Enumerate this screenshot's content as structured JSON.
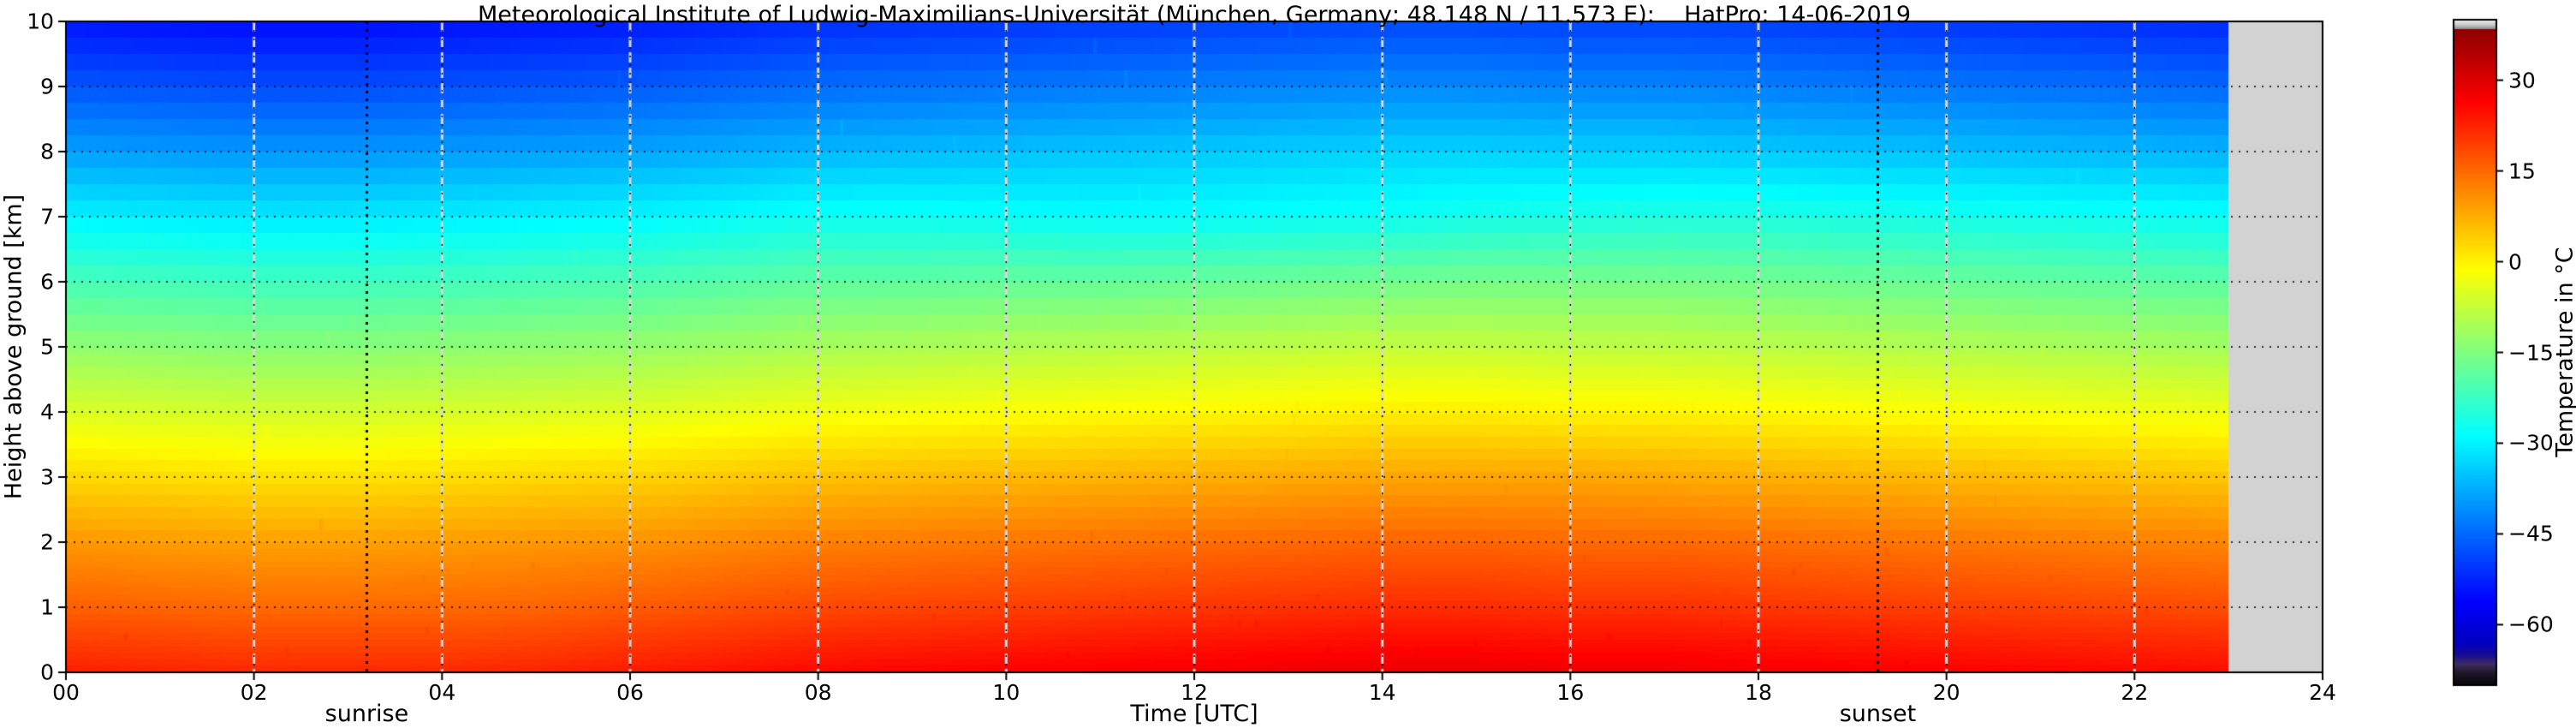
{
  "figure": {
    "title": "Meteorological Institute of Ludwig-Maximilians-Universität (München, Germany; 48.148 N / 11.573 E):    HatPro: 14-06-2019",
    "xlabel": "Time [UTC]",
    "ylabel": "Height above ground [km]",
    "colorbar_label": "Temperature in  °C",
    "sunrise_label": "sunrise",
    "sunset_label": "sunset"
  },
  "chart_data": {
    "type": "heatmap",
    "title": "Meteorological Institute of Ludwig-Maximilians-Universität (München, Germany; 48.148 N / 11.573 E):    HatPro: 14-06-2019",
    "xlabel": "Time [UTC]",
    "ylabel": "Height above ground [km]",
    "x_hours_utc": [
      0,
      1,
      2,
      3,
      4,
      5,
      6,
      7,
      8,
      9,
      10,
      11,
      12,
      13,
      14,
      15,
      16,
      17,
      18,
      19,
      20,
      21,
      22,
      23
    ],
    "y_height_km": [
      0,
      1,
      2,
      3,
      4,
      5,
      6,
      7,
      8,
      9,
      10
    ],
    "temps_c": [
      [
        24.0,
        17.0,
        11.0,
        4.0,
        -4.0,
        -12.0,
        -20.0,
        -29.0,
        -38.0,
        -46.0,
        -53.0
      ],
      [
        23.5,
        16.5,
        10.5,
        3.5,
        -4.5,
        -12.5,
        -20.5,
        -29.5,
        -38.5,
        -46.5,
        -53.5
      ],
      [
        23.0,
        16.0,
        10.0,
        3.0,
        -5.0,
        -13.0,
        -21.0,
        -30.0,
        -39.0,
        -47.0,
        -54.0
      ],
      [
        23.0,
        16.0,
        10.0,
        3.0,
        -5.0,
        -13.0,
        -21.0,
        -30.0,
        -39.0,
        -47.0,
        -54.0
      ],
      [
        23.0,
        16.0,
        10.5,
        3.5,
        -4.5,
        -12.5,
        -20.5,
        -29.5,
        -38.5,
        -46.5,
        -53.5
      ],
      [
        23.5,
        16.5,
        11.0,
        4.0,
        -4.0,
        -12.0,
        -20.0,
        -29.0,
        -38.0,
        -46.0,
        -53.0
      ],
      [
        24.5,
        17.5,
        11.5,
        4.5,
        -3.5,
        -11.5,
        -19.5,
        -28.5,
        -37.5,
        -45.5,
        -52.5
      ],
      [
        25.5,
        18.5,
        12.5,
        5.5,
        -2.5,
        -10.5,
        -18.5,
        -27.5,
        -36.5,
        -44.5,
        -51.5
      ],
      [
        26.5,
        19.5,
        13.5,
        6.5,
        -1.5,
        -9.5,
        -17.5,
        -26.5,
        -35.5,
        -43.5,
        -50.5
      ],
      [
        27.0,
        20.0,
        14.0,
        7.0,
        -1.0,
        -9.0,
        -17.5,
        -26.5,
        -35.0,
        -43.0,
        -50.0
      ],
      [
        27.5,
        20.5,
        14.5,
        7.5,
        -0.5,
        -8.5,
        -17.0,
        -27.0,
        -34.5,
        -42.5,
        -49.5
      ],
      [
        28.0,
        21.0,
        15.0,
        8.0,
        0.0,
        -8.0,
        -17.0,
        -27.5,
        -34.0,
        -42.0,
        -49.0
      ],
      [
        28.5,
        21.5,
        15.5,
        8.5,
        0.5,
        -7.5,
        -16.5,
        -27.5,
        -33.5,
        -41.5,
        -48.5
      ],
      [
        29.0,
        22.0,
        16.0,
        9.0,
        1.0,
        -7.0,
        -16.0,
        -27.0,
        -33.0,
        -41.0,
        -48.0
      ],
      [
        29.5,
        22.5,
        16.5,
        9.5,
        1.5,
        -6.5,
        -15.5,
        -26.5,
        -32.5,
        -40.5,
        -47.5
      ],
      [
        29.5,
        22.5,
        16.5,
        9.5,
        1.5,
        -6.5,
        -15.0,
        -25.5,
        -32.5,
        -40.5,
        -47.5
      ],
      [
        29.0,
        22.0,
        16.0,
        9.5,
        1.0,
        -7.0,
        -15.0,
        -25.0,
        -33.0,
        -41.0,
        -48.0
      ],
      [
        29.0,
        22.0,
        16.0,
        9.0,
        1.0,
        -7.0,
        -15.0,
        -24.5,
        -33.0,
        -41.0,
        -48.0
      ],
      [
        28.5,
        21.5,
        15.5,
        8.5,
        0.5,
        -7.5,
        -15.5,
        -24.5,
        -33.5,
        -41.5,
        -48.5
      ],
      [
        28.0,
        21.0,
        15.0,
        8.0,
        0.0,
        -8.0,
        -16.0,
        -25.0,
        -34.0,
        -42.0,
        -49.0
      ],
      [
        27.5,
        20.5,
        14.5,
        7.5,
        -0.5,
        -8.5,
        -16.5,
        -25.5,
        -34.5,
        -42.5,
        -49.5
      ],
      [
        27.0,
        20.0,
        14.0,
        7.0,
        -1.0,
        -9.0,
        -17.0,
        -26.0,
        -35.0,
        -43.0,
        -50.0
      ],
      [
        26.5,
        19.5,
        13.5,
        6.5,
        -1.5,
        -9.5,
        -17.5,
        -26.5,
        -35.5,
        -43.5,
        -50.5
      ],
      [
        26.0,
        19.0,
        13.0,
        6.0,
        -2.0,
        -10.0,
        -18.0,
        -27.0,
        -36.0,
        -44.0,
        -51.0
      ]
    ],
    "x_range_hours": [
      0,
      24
    ],
    "y_range_km": [
      0,
      10
    ],
    "x_tick_labels": [
      "00",
      "02",
      "04",
      "06",
      "08",
      "10",
      "12",
      "14",
      "16",
      "18",
      "20",
      "22",
      "24"
    ],
    "y_tick_labels": [
      "0",
      "1",
      "2",
      "3",
      "4",
      "5",
      "6",
      "7",
      "8",
      "9",
      "10"
    ],
    "data_end_hour": 23,
    "sunrise_hour_utc": 3.2,
    "sunset_hour_utc": 19.27,
    "no_data_color": "#d2d2d2",
    "grid_x_color": "#d8d8d8",
    "grid_y_color": "#000000",
    "colorbar": {
      "min": -70,
      "max": 40,
      "tick_values": [
        30,
        15,
        0,
        -15,
        -30,
        -45,
        -60
      ],
      "tick_labels": [
        "30",
        "15",
        "0",
        "−15",
        "−30",
        "−45",
        "−60"
      ],
      "label": "Temperature in  °C",
      "over_threshold": 38.5,
      "under_threshold": -63,
      "top_stops": [
        {
          "t": 40,
          "c": [
            245,
            245,
            245
          ]
        },
        {
          "t": 39,
          "c": [
            190,
            190,
            190
          ]
        },
        {
          "t": 38.5,
          "c": [
            140,
            140,
            140
          ]
        }
      ],
      "bottom_stops": [
        {
          "t": -63,
          "c": [
            0,
            0,
            193
          ]
        },
        {
          "t": -65,
          "c": [
            20,
            10,
            150
          ]
        },
        {
          "t": -66.5,
          "c": [
            62,
            44,
            96
          ]
        },
        {
          "t": -68,
          "c": [
            30,
            24,
            40
          ]
        },
        {
          "t": -70,
          "c": [
            5,
            5,
            5
          ]
        }
      ]
    },
    "legend_position": "right-colorbar",
    "grid": "x: light dashed every 2 h; y: black dotted every 1 km"
  }
}
